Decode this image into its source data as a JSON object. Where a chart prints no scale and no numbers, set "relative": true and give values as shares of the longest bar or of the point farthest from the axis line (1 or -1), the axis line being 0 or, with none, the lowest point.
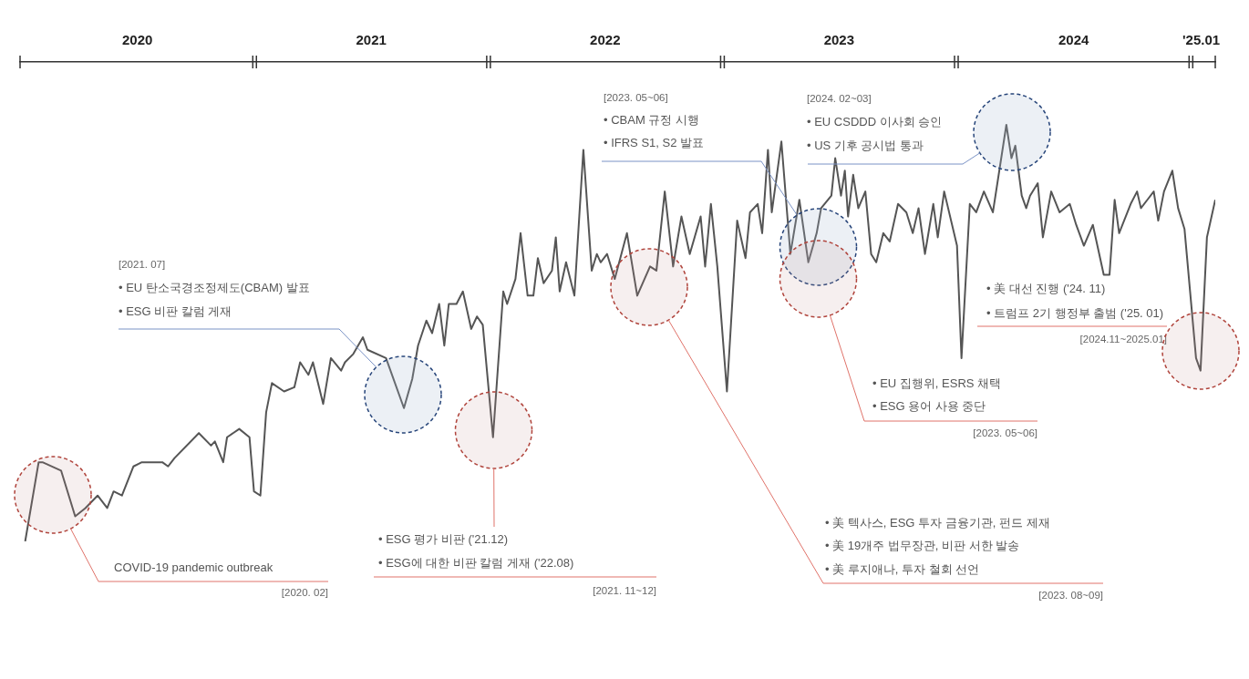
{
  "chart_data": {
    "type": "line",
    "relative": true,
    "legend": false,
    "grid": false,
    "marker": "none",
    "line_style": "solid",
    "xlim": [
      "2020-01-01",
      "2025-02-08"
    ],
    "xticks": [
      {
        "value": "2020-07-02",
        "label": "2020"
      },
      {
        "value": "2021-07-02",
        "label": "2021"
      },
      {
        "value": "2022-07-02",
        "label": "2022"
      },
      {
        "value": "2023-07-02",
        "label": "2023"
      },
      {
        "value": "2024-07-02",
        "label": "2024"
      },
      {
        "value": "2025-01-17",
        "label": "'25.01"
      }
    ],
    "series": [
      {
        "color": "#555555",
        "x": [
          "2020-01-09",
          "2020-01-30",
          "2020-02-05",
          "2020-03-05",
          "2020-03-27",
          "2020-04-12",
          "2020-05-01",
          "2020-05-16",
          "2020-05-26",
          "2020-06-08",
          "2020-06-26",
          "2020-07-09",
          "2020-08-10",
          "2020-08-19",
          "2020-08-29",
          "2020-10-06",
          "2020-10-25",
          "2020-10-31",
          "2020-11-13",
          "2020-11-19",
          "2020-12-08",
          "2020-12-24",
          "2020-12-31",
          "2021-01-10",
          "2021-01-19",
          "2021-01-28",
          "2021-02-16",
          "2021-03-04",
          "2021-03-13",
          "2021-03-26",
          "2021-04-02",
          "2021-04-18",
          "2021-04-30",
          "2021-05-16",
          "2021-05-22",
          "2021-06-04",
          "2021-06-19",
          "2021-06-26",
          "2021-07-25",
          "2021-08-22",
          "2021-09-04",
          "2021-09-13",
          "2021-09-26",
          "2021-10-05",
          "2021-10-16",
          "2021-10-24",
          "2021-10-31",
          "2021-11-12",
          "2021-11-22",
          "2021-12-05",
          "2021-12-14",
          "2021-12-23",
          "2022-01-08",
          "2022-01-24",
          "2022-01-30",
          "2022-02-12",
          "2022-02-20",
          "2022-03-03",
          "2022-03-12",
          "2022-03-19",
          "2022-03-28",
          "2022-04-10",
          "2022-04-16",
          "2022-04-22",
          "2022-05-02",
          "2022-05-15",
          "2022-05-29",
          "2022-06-11",
          "2022-06-19",
          "2022-06-25",
          "2022-07-05",
          "2022-07-17",
          "2022-08-05",
          "2022-08-21",
          "2022-09-10",
          "2022-09-20",
          "2022-10-03",
          "2022-10-16",
          "2022-10-29",
          "2022-11-11",
          "2022-11-28",
          "2022-12-05",
          "2022-12-14",
          "2022-12-24",
          "2023-01-08",
          "2023-01-24",
          "2023-02-06",
          "2023-02-13",
          "2023-02-25",
          "2023-03-04",
          "2023-03-13",
          "2023-03-19",
          "2023-04-03",
          "2023-04-17",
          "2023-05-01",
          "2023-05-15",
          "2023-05-28",
          "2023-06-04",
          "2023-06-20",
          "2023-06-26",
          "2023-07-05",
          "2023-07-11",
          "2023-07-16",
          "2023-07-24",
          "2023-08-01",
          "2023-08-12",
          "2023-08-21",
          "2023-08-29",
          "2023-09-09",
          "2023-09-19",
          "2023-10-02",
          "2023-10-15",
          "2023-10-25",
          "2023-11-03",
          "2023-11-13",
          "2023-11-26",
          "2023-12-03",
          "2023-12-13",
          "2024-01-02",
          "2024-01-09",
          "2024-01-22",
          "2024-02-01",
          "2024-02-13",
          "2024-02-27",
          "2024-03-07",
          "2024-03-19",
          "2024-03-27",
          "2024-04-02",
          "2024-04-12",
          "2024-04-19",
          "2024-04-25",
          "2024-05-07",
          "2024-05-15",
          "2024-05-28",
          "2024-06-10",
          "2024-06-26",
          "2024-07-06",
          "2024-07-18",
          "2024-08-01",
          "2024-08-18",
          "2024-08-27",
          "2024-09-04",
          "2024-09-11",
          "2024-09-29",
          "2024-10-09",
          "2024-10-15",
          "2024-10-25",
          "2024-11-04",
          "2024-11-11",
          "2024-11-20",
          "2024-12-03",
          "2024-12-12",
          "2024-12-22",
          "2025-01-09",
          "2025-01-16",
          "2025-01-26",
          "2025-02-08"
        ],
        "values": [
          0,
          0.19,
          0.19,
          0.17,
          0.06,
          0.08,
          0.11,
          0.08,
          0.12,
          0.11,
          0.18,
          0.19,
          0.19,
          0.18,
          0.2,
          0.26,
          0.23,
          0.24,
          0.19,
          0.25,
          0.27,
          0.25,
          0.12,
          0.11,
          0.31,
          0.38,
          0.36,
          0.37,
          0.43,
          0.4,
          0.43,
          0.33,
          0.44,
          0.41,
          0.43,
          0.45,
          0.49,
          0.46,
          0.44,
          0.32,
          0.39,
          0.47,
          0.53,
          0.5,
          0.57,
          0.47,
          0.57,
          0.57,
          0.6,
          0.51,
          0.54,
          0.52,
          0.25,
          0.6,
          0.57,
          0.63,
          0.74,
          0.59,
          0.59,
          0.68,
          0.62,
          0.65,
          0.73,
          0.6,
          0.67,
          0.59,
          0.94,
          0.65,
          0.69,
          0.67,
          0.69,
          0.63,
          0.74,
          0.59,
          0.66,
          0.65,
          0.84,
          0.66,
          0.78,
          0.69,
          0.78,
          0.66,
          0.81,
          0.66,
          0.36,
          0.77,
          0.68,
          0.79,
          0.81,
          0.74,
          0.94,
          0.79,
          0.96,
          0.69,
          0.82,
          0.67,
          0.74,
          0.8,
          0.83,
          0.92,
          0.83,
          0.89,
          0.78,
          0.88,
          0.8,
          0.84,
          0.69,
          0.67,
          0.74,
          0.72,
          0.81,
          0.79,
          0.74,
          0.8,
          0.69,
          0.81,
          0.73,
          0.84,
          0.71,
          0.44,
          0.81,
          0.79,
          0.84,
          0.79,
          0.88,
          1,
          0.92,
          0.95,
          0.83,
          0.8,
          0.83,
          0.86,
          0.73,
          0.84,
          0.79,
          0.81,
          0.76,
          0.71,
          0.76,
          0.64,
          0.64,
          0.82,
          0.74,
          0.81,
          0.84,
          0.8,
          0.82,
          0.84,
          0.77,
          0.84,
          0.89,
          0.8,
          0.75,
          0.44,
          0.41,
          0.73,
          0.82
        ]
      }
    ],
    "annotations": [
      "COVID-19 pandemic outbreak",
      "[2020. 02]",
      "[2021. 07]",
      "• EU 탄소국경조정제도(CBAM) 발표",
      "• ESG 비판 칼럼 게재",
      "• ESG 평가 비판 ('21.12)",
      "• ESG에 대한 비판 칼럼 게재 ('22.08)",
      "[2021. 11~12]",
      "[2023. 05~06]",
      "• CBAM 규정 시행",
      "• IFRS S1, S2 발표",
      "• EU 집행위, ESRS 채택",
      "• ESG 용어 사용 중단",
      "[2023. 05~06]",
      "• 美 텍사스, ESG 투자 금융기관, 펀드 제재",
      "• 美 19개주 법무장관, 비판 서한 발송",
      "• 美 루지애나, 투자 철회 선언",
      "[2023. 08~09]",
      "[2024. 02~03]",
      "• EU CSDDD 이사회 승인",
      "• US 기후 공시법 통과",
      "• 美 대선 진행 ('24. 11)",
      "• 트럼프 2기 행정부 출범 ('25. 01)",
      "[2024.11~2025.01]"
    ]
  }
}
